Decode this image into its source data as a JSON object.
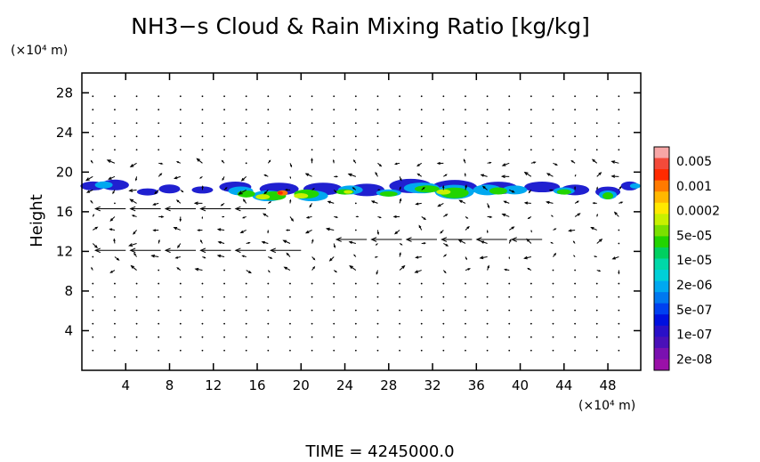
{
  "chart_data": {
    "type": "heatmap",
    "title": "NH3−s Cloud & Rain Mixing Ratio [kg/kg]",
    "ylabel": "Height",
    "y_unit_label": "(×10⁴ m)",
    "x_unit_label": "(×10⁴ m)",
    "footer": "TIME  =  4245000.0",
    "xlim": [
      0,
      51
    ],
    "ylim": [
      0,
      30
    ],
    "x_ticks": [
      4,
      8,
      12,
      16,
      20,
      24,
      28,
      32,
      36,
      40,
      44,
      48
    ],
    "y_ticks": [
      4,
      8,
      12,
      16,
      20,
      24,
      28
    ],
    "colorbar": {
      "labels": [
        "0.005",
        "0.001",
        "0.0002",
        "5e-05",
        "1e-05",
        "2e-06",
        "5e-07",
        "1e-07",
        "2e-08"
      ],
      "colors": [
        "#f7a6a6",
        "#f44a3a",
        "#ff2a00",
        "#ff7a00",
        "#ffb800",
        "#ffe800",
        "#c8f000",
        "#7ae000",
        "#22d400",
        "#00d060",
        "#00d8a8",
        "#00d0d8",
        "#00a8f0",
        "#0078f0",
        "#0040f0",
        "#0010e0",
        "#2a10c8",
        "#4a10b8",
        "#7a10b0",
        "#9a10a8"
      ]
    },
    "cloud_layers": [
      {
        "x_range": [
          0,
          51
        ],
        "y_range": [
          17,
          20
        ],
        "level": "1e-07 to 2e-08"
      },
      {
        "x_range": [
          13,
          47
        ],
        "y_range": [
          17,
          19
        ],
        "level": "1e-05 to 5e-07"
      },
      {
        "x_range": [
          17,
          19.5
        ],
        "y_range": [
          17.5,
          18.5
        ],
        "level": "0.0002 to 5e-05"
      }
    ],
    "wind_jets": [
      {
        "y": 16.3,
        "x_range": [
          0,
          15
        ],
        "direction": "west"
      },
      {
        "y": 12.1,
        "x_range": [
          0,
          20
        ],
        "direction": "west"
      },
      {
        "y": 13.2,
        "x_range": [
          22,
          42
        ],
        "direction": "west"
      }
    ]
  }
}
